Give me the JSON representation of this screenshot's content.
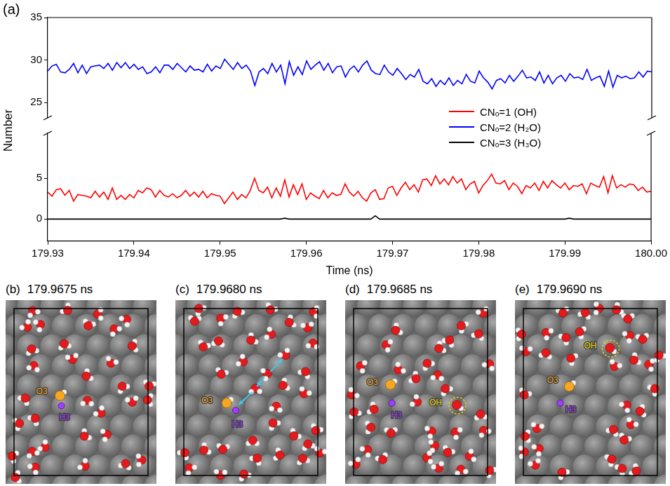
{
  "panel_label": "(a)",
  "chart_data": {
    "type": "line",
    "xlabel": "Time (ns)",
    "ylabel": "Number",
    "grid": false,
    "legend": "right",
    "xlim": [
      179.93,
      180
    ],
    "xticks": [
      179.93,
      179.94,
      179.95,
      179.96,
      179.97,
      179.98,
      179.99,
      {
        "value": 180,
        "label": "180.00"
      }
    ],
    "ylim": [
      23.2,
      35
    ],
    "yticks": [
      25,
      30,
      35
    ],
    "y2lim": [
      -2.7,
      10.5
    ],
    "y2ticks": [
      0,
      5
    ],
    "x": [
      179.93,
      179.9305,
      179.931,
      179.9315,
      179.932,
      179.9325,
      179.933,
      179.9335,
      179.934,
      179.9345,
      179.935,
      179.9355,
      179.936,
      179.9365,
      179.937,
      179.9375,
      179.938,
      179.9385,
      179.939,
      179.9395,
      179.94,
      179.9405,
      179.941,
      179.9415,
      179.942,
      179.9425,
      179.943,
      179.9435,
      179.944,
      179.9445,
      179.945,
      179.9455,
      179.946,
      179.9465,
      179.947,
      179.9475,
      179.948,
      179.9485,
      179.949,
      179.9495,
      179.95,
      179.9505,
      179.951,
      179.9515,
      179.952,
      179.9525,
      179.953,
      179.9535,
      179.954,
      179.9545,
      179.955,
      179.9555,
      179.956,
      179.9565,
      179.957,
      179.9575,
      179.958,
      179.9585,
      179.959,
      179.9595,
      179.96,
      179.9605,
      179.961,
      179.9615,
      179.962,
      179.9625,
      179.963,
      179.9635,
      179.964,
      179.9645,
      179.965,
      179.9655,
      179.966,
      179.9665,
      179.967,
      179.9675,
      179.968,
      179.9685,
      179.969,
      179.9695,
      179.97,
      179.9705,
      179.971,
      179.9715,
      179.972,
      179.9725,
      179.973,
      179.9735,
      179.974,
      179.9745,
      179.975,
      179.9755,
      179.976,
      179.9765,
      179.977,
      179.9775,
      179.978,
      179.9785,
      179.979,
      179.9795,
      179.98,
      179.9805,
      179.981,
      179.9815,
      179.982,
      179.9825,
      179.983,
      179.9835,
      179.984,
      179.9845,
      179.985,
      179.9855,
      179.986,
      179.9865,
      179.987,
      179.9875,
      179.988,
      179.9885,
      179.989,
      179.9895,
      179.99,
      179.9905,
      179.991,
      179.9915,
      179.992,
      179.9925,
      179.993,
      179.9935,
      179.994,
      179.9945,
      179.995,
      179.9955,
      179.996,
      179.9965,
      179.997,
      179.9975,
      179.998,
      179.9985,
      179.999,
      179.9995,
      180
    ],
    "series": [
      {
        "name": "CNₒ=1 (OH)",
        "color": "#ff0000",
        "axis": "y2",
        "values": [
          3.3,
          2.8,
          3.6,
          3.7,
          2.9,
          3.5,
          2.2,
          3.0,
          2.9,
          2.8,
          2.6,
          3.4,
          2.7,
          3.3,
          2.4,
          3.8,
          2.4,
          2.9,
          2.4,
          3.0,
          2.6,
          3.5,
          3.2,
          3.8,
          3.6,
          2.7,
          3.5,
          2.9,
          2.7,
          3.1,
          2.6,
          2.9,
          3.5,
          2.8,
          3.3,
          2.7,
          3.4,
          2.6,
          3.1,
          2.9,
          2.8,
          1.9,
          2.6,
          3.3,
          2.4,
          3.0,
          2.6,
          3.5,
          5.0,
          3.5,
          3.2,
          3.9,
          2.6,
          3.8,
          2.8,
          4.8,
          2.7,
          4.2,
          3.0,
          4.3,
          2.4,
          3.2,
          2.8,
          2.5,
          3.5,
          2.6,
          3.2,
          2.9,
          3.0,
          4.3,
          3.3,
          2.8,
          3.4,
          2.6,
          2.2,
          3.2,
          3.6,
          2.4,
          2.5,
          3.8,
          4.0,
          2.9,
          3.8,
          4.5,
          3.6,
          4.2,
          3.3,
          4.8,
          4.9,
          4.1,
          5.3,
          4.3,
          4.9,
          4.2,
          5.2,
          4.4,
          4.9,
          3.6,
          4.3,
          4.6,
          3.2,
          4.1,
          4.7,
          5.5,
          4.4,
          4.3,
          4.7,
          3.6,
          4.4,
          4.0,
          3.1,
          4.1,
          3.8,
          4.4,
          3.5,
          4.6,
          3.8,
          4.7,
          4.2,
          3.8,
          4.4,
          3.6,
          4.1,
          4.0,
          4.3,
          3.1,
          4.4,
          4.1,
          3.9,
          5.2,
          3.2,
          5.3,
          3.8,
          4.2,
          3.9,
          4.3,
          4.2,
          3.5,
          3.9,
          3.3,
          3.4
        ]
      },
      {
        "name": "CNₒ=2 (H₂O)",
        "color": "#0000ff",
        "values": [
          28.7,
          29.3,
          29.5,
          28.6,
          28.5,
          28.9,
          29.6,
          28.5,
          29.4,
          28.4,
          29.2,
          29.3,
          29.4,
          29.0,
          29.6,
          28.8,
          29.7,
          29.1,
          29.7,
          29.0,
          29.5,
          28.9,
          29.2,
          28.4,
          28.6,
          29.2,
          28.5,
          29.4,
          29.4,
          28.9,
          29.6,
          29.1,
          28.6,
          29.3,
          28.8,
          28.9,
          28.6,
          29.5,
          28.7,
          29.3,
          29.0,
          30.1,
          29.5,
          28.9,
          29.7,
          29.0,
          29.4,
          28.7,
          27.0,
          28.6,
          29.0,
          28.4,
          29.6,
          28.6,
          29.4,
          27.2,
          29.8,
          28.2,
          29.2,
          28.3,
          29.9,
          28.9,
          29.4,
          29.8,
          28.8,
          29.6,
          28.5,
          29.2,
          29.3,
          28.0,
          28.9,
          29.3,
          28.6,
          29.4,
          29.9,
          28.8,
          28.4,
          28.3,
          29.4,
          28.6,
          28.2,
          29.0,
          28.4,
          27.7,
          28.3,
          28.0,
          28.9,
          27.5,
          27.2,
          27.8,
          26.9,
          27.6,
          27.1,
          27.9,
          27.0,
          27.6,
          27.2,
          28.3,
          27.5,
          27.3,
          28.7,
          27.9,
          27.4,
          26.6,
          27.6,
          27.8,
          27.3,
          28.2,
          27.5,
          28.1,
          28.8,
          27.9,
          28.0,
          27.6,
          28.6,
          27.3,
          28.2,
          27.2,
          27.9,
          28.2,
          27.5,
          28.4,
          27.9,
          28.0,
          27.7,
          28.9,
          27.6,
          27.9,
          28.1,
          26.9,
          28.7,
          26.8,
          28.2,
          27.9,
          28.1,
          27.8,
          27.9,
          28.6,
          28.0,
          28.7,
          28.6
        ]
      },
      {
        "name": "CNₒ=3 (H₃O)",
        "color": "#000000",
        "axis": "y2",
        "values": [
          0,
          0,
          0,
          0,
          0,
          0,
          0,
          0,
          0,
          0,
          0,
          0,
          0,
          0,
          0,
          0,
          0,
          0,
          0,
          0,
          0,
          0,
          0,
          0,
          0,
          0,
          0,
          0,
          0,
          0,
          0,
          0,
          0,
          0,
          0,
          0,
          0,
          0,
          0,
          0,
          0,
          0,
          0,
          0,
          0,
          0,
          0,
          0,
          0,
          0,
          0,
          0,
          0,
          0,
          0,
          0.1,
          0,
          0,
          0,
          0,
          0,
          0,
          0,
          0,
          0,
          0,
          0,
          0,
          0,
          0,
          0,
          0,
          0,
          0,
          0,
          0,
          0.4,
          0,
          0,
          0,
          0,
          0,
          0,
          0,
          0,
          0,
          0,
          0,
          0,
          0,
          0,
          0,
          0,
          0,
          0,
          0,
          0,
          0,
          0,
          0,
          0,
          0,
          0,
          0,
          0,
          0,
          0,
          0,
          0,
          0,
          0,
          0,
          0,
          0,
          0,
          0,
          0,
          0,
          0,
          0,
          0,
          0.1,
          0,
          0,
          0,
          0,
          0,
          0,
          0,
          0,
          0,
          0,
          0,
          0,
          0,
          0,
          0,
          0,
          0,
          0,
          0
        ]
      }
    ]
  },
  "panels": [
    {
      "letter": "(b)",
      "title": "179.9675 ns",
      "labels": [
        {
          "text": "O3",
          "color": "#f5a623"
        },
        {
          "text": "H3",
          "color": "#a040ff"
        }
      ]
    },
    {
      "letter": "(c)",
      "title": "179.9680 ns",
      "labels": [
        {
          "text": "O3",
          "color": "#f5a623"
        },
        {
          "text": "H3",
          "color": "#a040ff"
        }
      ]
    },
    {
      "letter": "(d)",
      "title": "179.9685 ns",
      "labels": [
        {
          "text": "O3",
          "color": "#f5a623"
        },
        {
          "text": "H3",
          "color": "#a040ff"
        },
        {
          "text": "OH",
          "color": "#f0e000"
        }
      ]
    },
    {
      "letter": "(e)",
      "title": "179.9690 ns",
      "labels": [
        {
          "text": "O3",
          "color": "#f5a623"
        },
        {
          "text": "H3",
          "color": "#a040ff"
        },
        {
          "text": "OH",
          "color": "#f0e000"
        }
      ]
    }
  ]
}
